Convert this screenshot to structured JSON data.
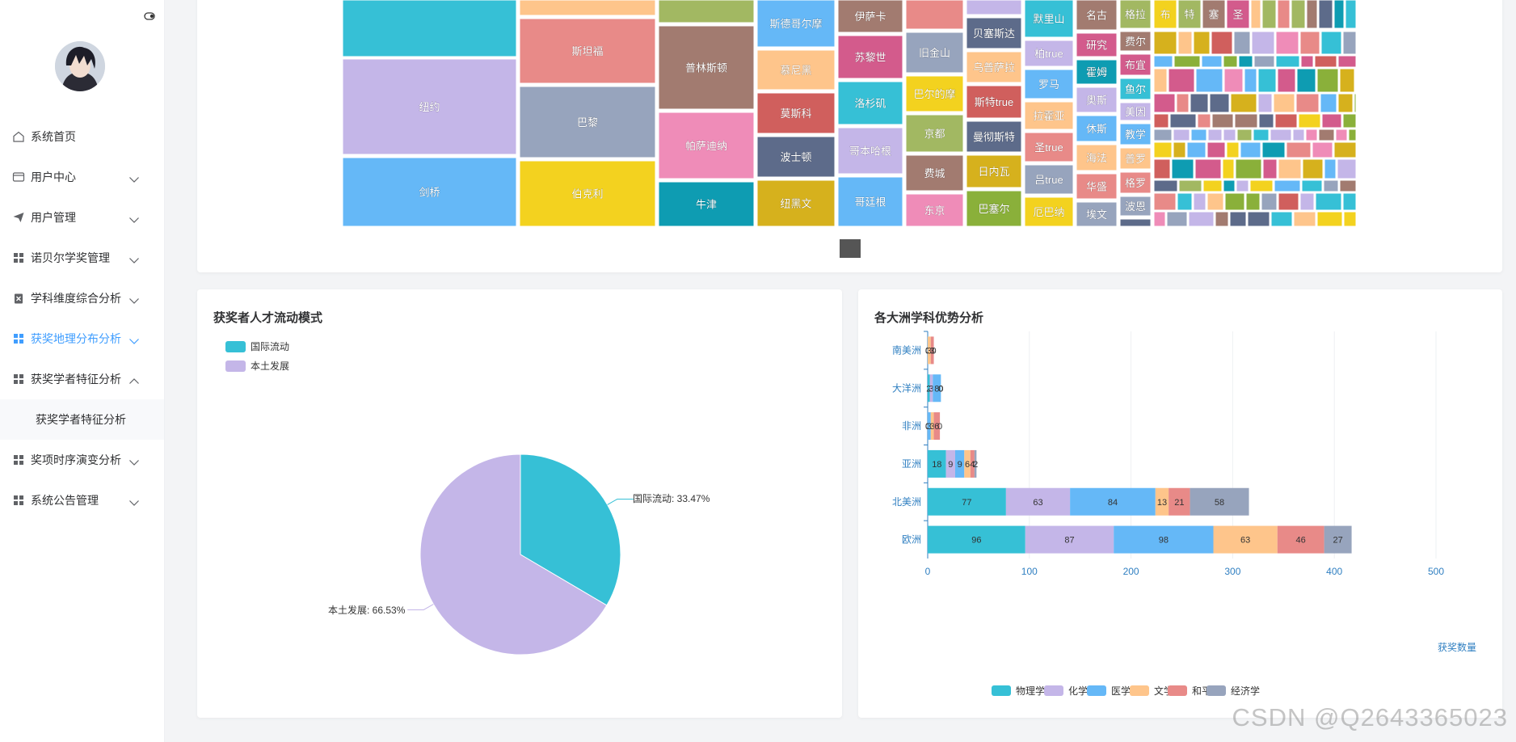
{
  "sidebar": {
    "items": [
      {
        "label": "系统首页",
        "icon": "home-icon",
        "has_chevron": false
      },
      {
        "label": "用户中心",
        "icon": "card-icon",
        "has_chevron": true
      },
      {
        "label": "用户管理",
        "icon": "send-icon",
        "has_chevron": true
      },
      {
        "label": "诺贝尔学奖管理",
        "icon": "grid-icon",
        "has_chevron": true
      },
      {
        "label": "学科维度综合分析",
        "icon": "clipboard-icon",
        "has_chevron": true
      },
      {
        "label": "获奖地理分布分析",
        "icon": "grid-icon",
        "has_chevron": true,
        "active": true
      },
      {
        "label": "获奖学者特征分析",
        "icon": "grid-icon",
        "has_chevron": true,
        "expanded": true
      },
      {
        "label": "奖项时序演变分析",
        "icon": "grid-icon",
        "has_chevron": true
      },
      {
        "label": "系统公告管理",
        "icon": "grid-icon",
        "has_chevron": true
      }
    ],
    "submenu": {
      "label": "获奖学者特征分析"
    }
  },
  "colors": {
    "accent": "#409eff",
    "palette": [
      "#36c0d6",
      "#c4b6e8",
      "#65b8f7",
      "#fec58b",
      "#e88a88",
      "#97a4bd",
      "#a2b862",
      "#a27b70",
      "#ef8cb8",
      "#f3d21f",
      "#0e9cb2",
      "#5d6b8a",
      "#d05f5d",
      "#d6b11d",
      "#8ab03a",
      "#d35b8c"
    ]
  },
  "treemap": {
    "type": "treemap",
    "labels": [
      "纽约",
      "剑桥",
      "斯坦福",
      "巴黎",
      "伯克利",
      "普林斯顿",
      "帕萨迪纳",
      "牛津",
      "斯德哥尔摩",
      "慕尼黑",
      "莫斯科",
      "波士顿",
      "纽黑文",
      "伊萨卡",
      "苏黎世",
      "洛杉矶",
      "哥本哈根",
      "哥廷根",
      "旧金山",
      "巴尔的摩",
      "京都",
      "费城",
      "东京",
      "贝塞斯达",
      "乌普萨拉",
      "斯特true",
      "曼彻斯特",
      "日内瓦",
      "巴塞尔",
      "默里山",
      "柏true",
      "罗马",
      "拉霍亚",
      "圣true",
      "吕true",
      "厄巴纳",
      "名古",
      "研究",
      "霍姆",
      "奥斯",
      "休斯",
      "海法",
      "华盛",
      "埃文",
      "格拉",
      "费尔",
      "布宜",
      "鱼尔",
      "美因",
      "教学",
      "普罗",
      "格罗",
      "波恩",
      "布",
      "特",
      "塞",
      "圣"
    ]
  },
  "pie_chart": {
    "title": "获奖者人才流动模式",
    "legend": [
      "国际流动",
      "本土发展"
    ],
    "label_international": "国际流动: 33.47%",
    "label_local": "本土发展: 66.53%"
  },
  "bar_chart": {
    "title": "各大洲学科优势分析",
    "axis_name": "获奖数量",
    "tick_labels": [
      "0",
      "100",
      "200",
      "300",
      "400",
      "500"
    ],
    "category_labels": [
      "欧洲",
      "北美洲",
      "亚洲",
      "非洲",
      "大洋洲",
      "南美洲"
    ],
    "legend": [
      "物理学",
      "化学",
      "医学",
      "文学",
      "和平",
      "经济学"
    ]
  },
  "chart_data": [
    {
      "type": "pie",
      "title": "获奖者人才流动模式",
      "legend_position": "top-left",
      "slices": [
        {
          "name": "国际流动",
          "value": 33.47
        },
        {
          "name": "本土发展",
          "value": 66.53
        }
      ]
    },
    {
      "type": "bar",
      "orientation": "horizontal",
      "stacked": true,
      "title": "各大洲学科优势分析",
      "xlabel": "获奖数量",
      "xlim": [
        0,
        500
      ],
      "legend_position": "bottom",
      "grid": true,
      "categories": [
        "欧洲",
        "北美洲",
        "亚洲",
        "非洲",
        "大洋洲",
        "南美洲"
      ],
      "series": [
        {
          "name": "物理学",
          "values": [
            96,
            77,
            18,
            0,
            2,
            0
          ]
        },
        {
          "name": "化学",
          "values": [
            87,
            63,
            9,
            0,
            3,
            0
          ]
        },
        {
          "name": "医学",
          "values": [
            98,
            84,
            9,
            3,
            8,
            0
          ]
        },
        {
          "name": "文学",
          "values": [
            63,
            13,
            6,
            3,
            0,
            3
          ]
        },
        {
          "name": "和平",
          "values": [
            46,
            21,
            4,
            6,
            0,
            3
          ]
        },
        {
          "name": "经济学",
          "values": [
            27,
            58,
            2,
            0,
            0,
            0
          ]
        }
      ]
    }
  ]
}
